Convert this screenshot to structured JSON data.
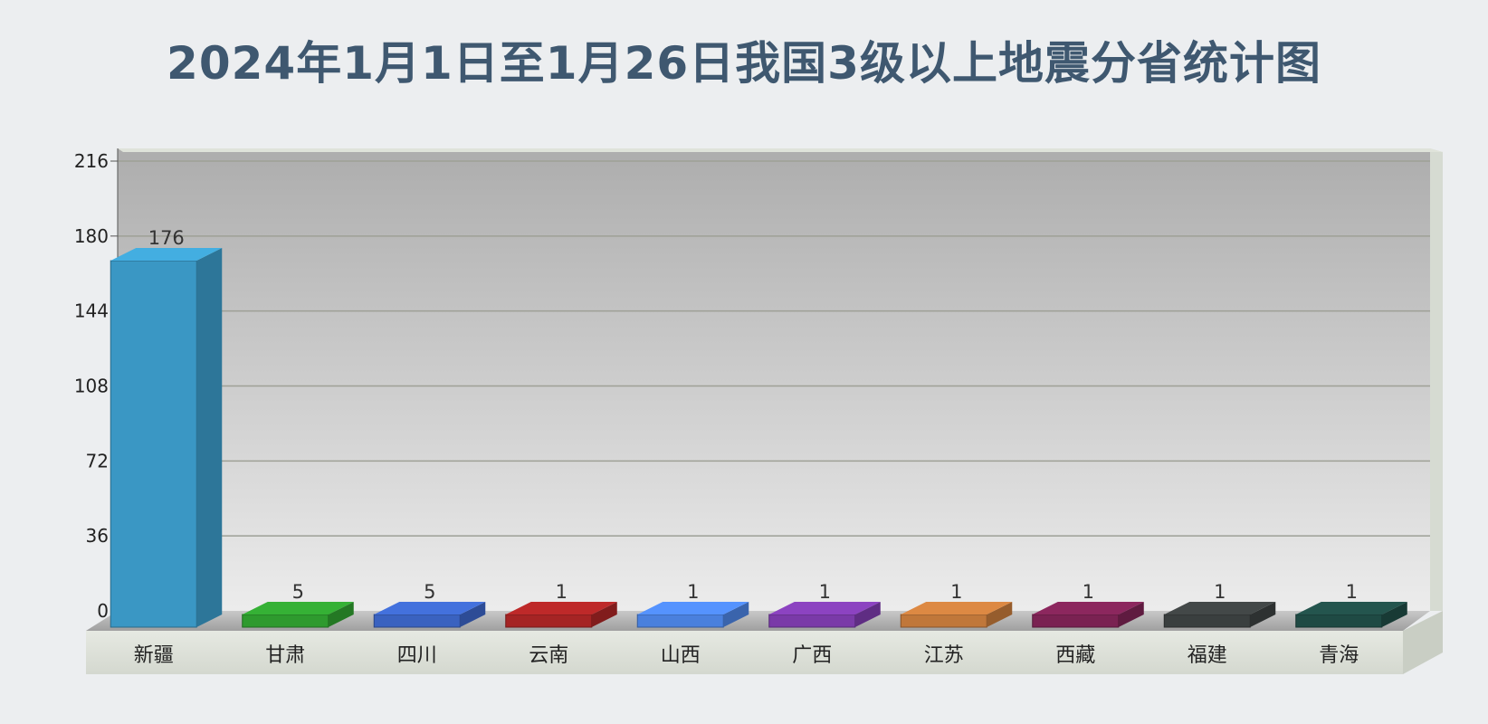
{
  "chart_data": {
    "type": "bar",
    "title": "2024年1月1日至1月26日我国3级以上地震分省统计图",
    "categories": [
      "新疆",
      "甘肃",
      "四川",
      "云南",
      "山西",
      "广西",
      "江苏",
      "西藏",
      "福建",
      "青海"
    ],
    "values": [
      176,
      5,
      5,
      1,
      1,
      1,
      1,
      1,
      1,
      1
    ],
    "bar_colors": [
      "#3a97c4",
      "#2e9a2e",
      "#3a62c0",
      "#a52424",
      "#4a80dd",
      "#7a3aa8",
      "#c0773a",
      "#7a2252",
      "#3a3f3f",
      "#1f4a44"
    ],
    "yticks": [
      0,
      36,
      72,
      108,
      144,
      180,
      216
    ],
    "ylim": [
      0,
      216
    ],
    "xlabel": "",
    "ylabel": "",
    "grid": true,
    "legend": "none"
  }
}
